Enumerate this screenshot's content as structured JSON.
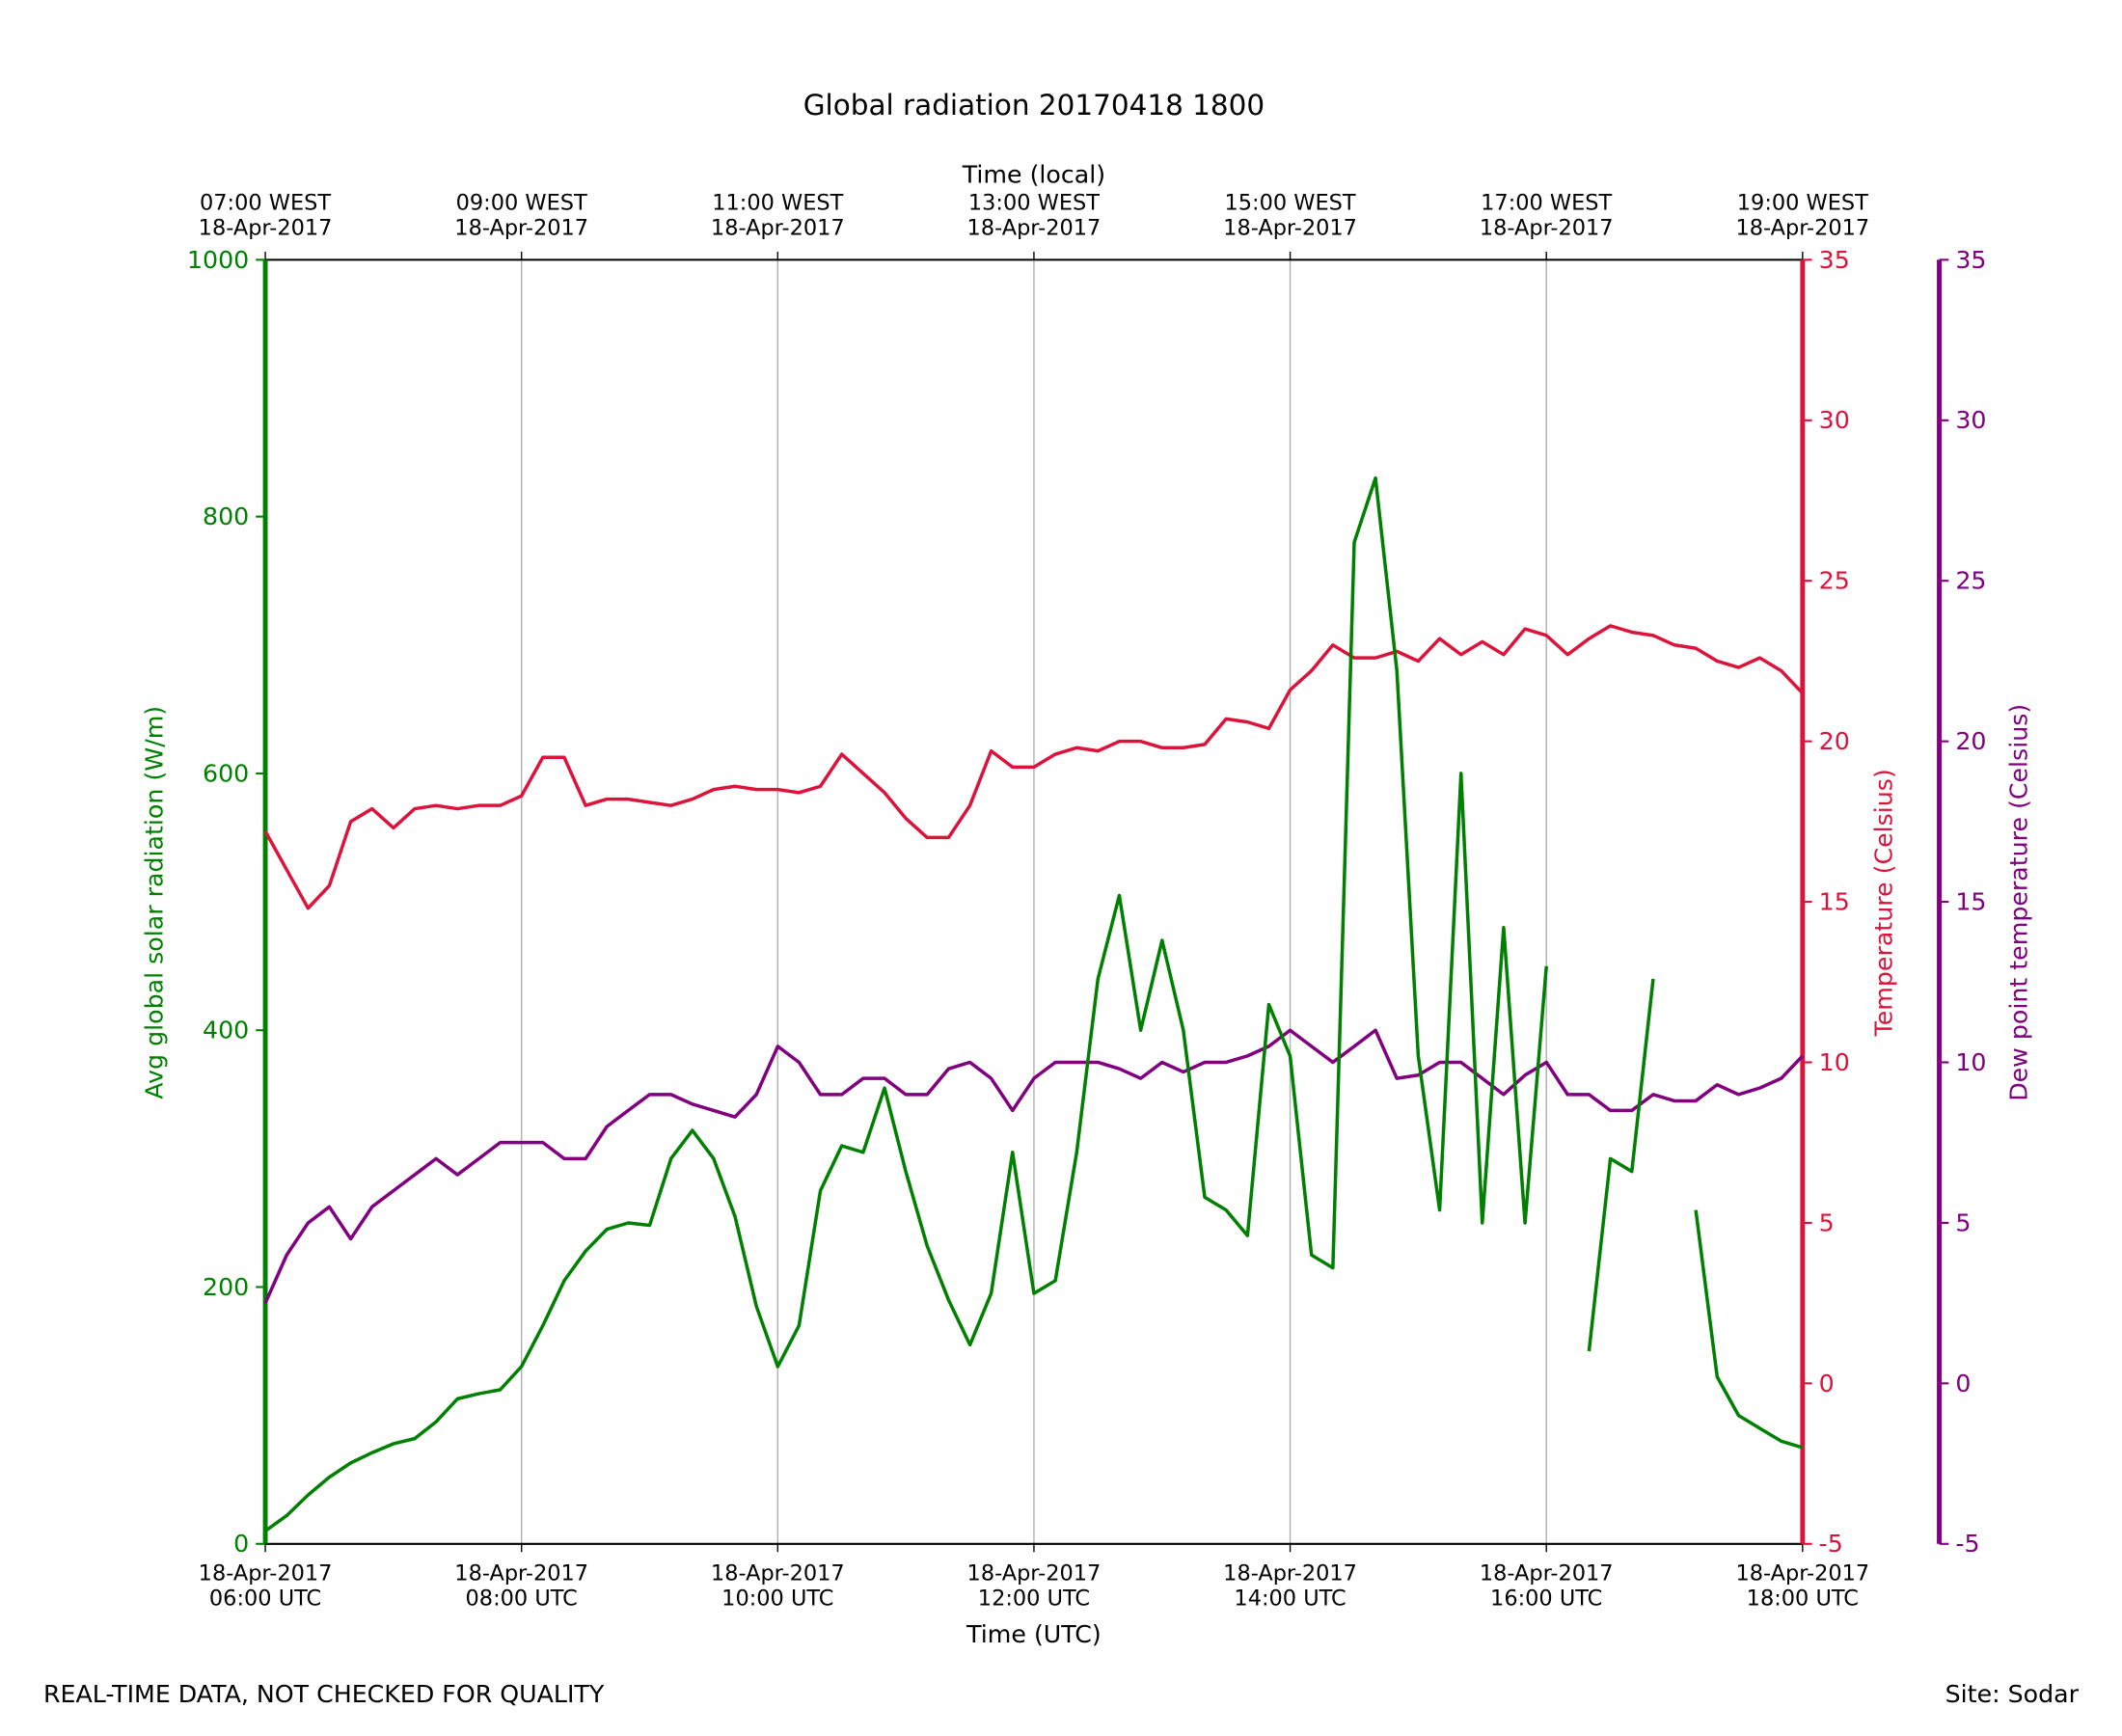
{
  "chart_data": {
    "type": "line",
    "title": "Global radiation 20170418 1800",
    "xlabel": "Time (UTC)",
    "x2label": "Time (local)",
    "ylabel": "Avg global solar radiation (W/m)",
    "y2label": "Temperature (Celsius)",
    "y3label": "Dew point temperature (Celsius)",
    "footer_left": "REAL-TIME DATA, NOT CHECKED FOR QUALITY",
    "footer_right": "Site: Sodar",
    "grid": true,
    "xlim": [
      "2017-04-18 06:00",
      "2017-04-18 18:00"
    ],
    "xticks": [
      {
        "value": "2017-04-18 06:00",
        "label": "18-Apr-2017\n06:00 UTC"
      },
      {
        "value": "2017-04-18 08:00",
        "label": "18-Apr-2017\n08:00 UTC"
      },
      {
        "value": "2017-04-18 10:00",
        "label": "18-Apr-2017\n10:00 UTC"
      },
      {
        "value": "2017-04-18 12:00",
        "label": "18-Apr-2017\n12:00 UTC"
      },
      {
        "value": "2017-04-18 14:00",
        "label": "18-Apr-2017\n14:00 UTC"
      },
      {
        "value": "2017-04-18 16:00",
        "label": "18-Apr-2017\n16:00 UTC"
      },
      {
        "value": "2017-04-18 18:00",
        "label": "18-Apr-2017\n18:00 UTC"
      }
    ],
    "x2ticks": [
      {
        "value": "2017-04-18 06:00",
        "label": "07:00 WEST\n18-Apr-2017"
      },
      {
        "value": "2017-04-18 08:00",
        "label": "09:00 WEST\n18-Apr-2017"
      },
      {
        "value": "2017-04-18 10:00",
        "label": "11:00 WEST\n18-Apr-2017"
      },
      {
        "value": "2017-04-18 12:00",
        "label": "13:00 WEST\n18-Apr-2017"
      },
      {
        "value": "2017-04-18 14:00",
        "label": "15:00 WEST\n18-Apr-2017"
      },
      {
        "value": "2017-04-18 16:00",
        "label": "17:00 WEST\n18-Apr-2017"
      },
      {
        "value": "2017-04-18 18:00",
        "label": "19:00 WEST\n18-Apr-2017"
      }
    ],
    "ylim": [
      0,
      1000
    ],
    "yticks": [
      0,
      200,
      400,
      600,
      800,
      1000
    ],
    "y2lim": [
      -5,
      35
    ],
    "y2ticks": [
      -5,
      0,
      5,
      10,
      15,
      20,
      25,
      30,
      35
    ],
    "y3lim": [
      -5,
      35
    ],
    "y3ticks": [
      -5,
      0,
      5,
      10,
      15,
      20,
      25,
      30,
      35
    ],
    "x": [
      "2017-04-18 06:00",
      "2017-04-18 06:10",
      "2017-04-18 06:20",
      "2017-04-18 06:30",
      "2017-04-18 06:40",
      "2017-04-18 06:50",
      "2017-04-18 07:00",
      "2017-04-18 07:10",
      "2017-04-18 07:20",
      "2017-04-18 07:30",
      "2017-04-18 07:40",
      "2017-04-18 07:50",
      "2017-04-18 08:00",
      "2017-04-18 08:10",
      "2017-04-18 08:20",
      "2017-04-18 08:30",
      "2017-04-18 08:40",
      "2017-04-18 08:50",
      "2017-04-18 09:00",
      "2017-04-18 09:10",
      "2017-04-18 09:20",
      "2017-04-18 09:30",
      "2017-04-18 09:40",
      "2017-04-18 09:50",
      "2017-04-18 10:00",
      "2017-04-18 10:10",
      "2017-04-18 10:20",
      "2017-04-18 10:30",
      "2017-04-18 10:40",
      "2017-04-18 10:50",
      "2017-04-18 11:00",
      "2017-04-18 11:10",
      "2017-04-18 11:20",
      "2017-04-18 11:30",
      "2017-04-18 11:40",
      "2017-04-18 11:50",
      "2017-04-18 12:00",
      "2017-04-18 12:10",
      "2017-04-18 12:20",
      "2017-04-18 12:30",
      "2017-04-18 12:40",
      "2017-04-18 12:50",
      "2017-04-18 13:00",
      "2017-04-18 13:10",
      "2017-04-18 13:20",
      "2017-04-18 13:30",
      "2017-04-18 13:40",
      "2017-04-18 13:50",
      "2017-04-18 14:00",
      "2017-04-18 14:10",
      "2017-04-18 14:20",
      "2017-04-18 14:30",
      "2017-04-18 14:40",
      "2017-04-18 14:50",
      "2017-04-18 15:00",
      "2017-04-18 15:10",
      "2017-04-18 15:20",
      "2017-04-18 15:30",
      "2017-04-18 15:40",
      "2017-04-18 15:50",
      "2017-04-18 16:00",
      "2017-04-18 16:10",
      "2017-04-18 16:20",
      "2017-04-18 16:30",
      "2017-04-18 16:40",
      "2017-04-18 16:50",
      "2017-04-18 17:00",
      "2017-04-18 17:10",
      "2017-04-18 17:20",
      "2017-04-18 17:30",
      "2017-04-18 17:40",
      "2017-04-18 17:50",
      "2017-04-18 18:00"
    ],
    "series": [
      {
        "name": "Avg global solar radiation",
        "color": "#008000",
        "axis": "y",
        "values": [
          10,
          22,
          38,
          52,
          63,
          71,
          78,
          82,
          95,
          113,
          117,
          120,
          138,
          170,
          205,
          228,
          245,
          250,
          248,
          300,
          322,
          300,
          255,
          185,
          138,
          170,
          275,
          310,
          305,
          355,
          290,
          232,
          190,
          155,
          195,
          305,
          195,
          205,
          305,
          440,
          505,
          400,
          470,
          400,
          270,
          260,
          240,
          420,
          380,
          225,
          215,
          780,
          830,
          680,
          380,
          260,
          600,
          250,
          480,
          250,
          450,
          null,
          150,
          300,
          290,
          440,
          null,
          260,
          130,
          100,
          90,
          80,
          75
        ]
      },
      {
        "name": "Temperature",
        "color": "#dc143c",
        "axis": "y2",
        "values": [
          17.2,
          16,
          14.8,
          15.5,
          17.5,
          17.9,
          17.3,
          17.9,
          18,
          17.9,
          18,
          18,
          18.3,
          19.5,
          19.5,
          18,
          18.2,
          18.2,
          18.1,
          18,
          18.2,
          18.5,
          18.6,
          18.5,
          18.5,
          18.4,
          18.6,
          19.6,
          19,
          18.4,
          17.6,
          17,
          17,
          18,
          19.7,
          19.2,
          19.2,
          19.6,
          19.8,
          19.7,
          20,
          20,
          19.8,
          19.8,
          19.9,
          20.7,
          20.6,
          20.4,
          21.6,
          22.2,
          23,
          22.6,
          22.6,
          22.8,
          22.5,
          23.2,
          22.7,
          23.1,
          22.7,
          23.5,
          23.3,
          22.7,
          23.2,
          23.6,
          23.4,
          23.3,
          23,
          22.9,
          22.5,
          22.3,
          22.6,
          22.2,
          21.5
        ]
      },
      {
        "name": "Dew point temperature",
        "color": "#800080",
        "axis": "y3",
        "values": [
          2.5,
          4,
          5,
          5.5,
          4.5,
          5.5,
          6,
          6.5,
          7,
          6.5,
          7,
          7.5,
          7.5,
          7.5,
          7,
          7,
          8,
          8.5,
          9,
          9,
          8.7,
          8.5,
          8.3,
          9,
          10.5,
          10,
          9,
          9,
          9.5,
          9.5,
          9,
          9,
          9.8,
          10,
          9.5,
          8.5,
          9.5,
          10,
          10,
          10,
          9.8,
          9.5,
          10,
          9.7,
          10,
          10,
          10.2,
          10.5,
          11,
          10.5,
          10,
          10.5,
          11,
          9.5,
          9.6,
          10,
          10,
          9.5,
          9,
          9.6,
          10,
          9,
          9,
          8.5,
          8.5,
          9,
          8.8,
          8.8,
          9.3,
          9,
          9.2,
          9.5,
          10.2
        ]
      }
    ]
  }
}
